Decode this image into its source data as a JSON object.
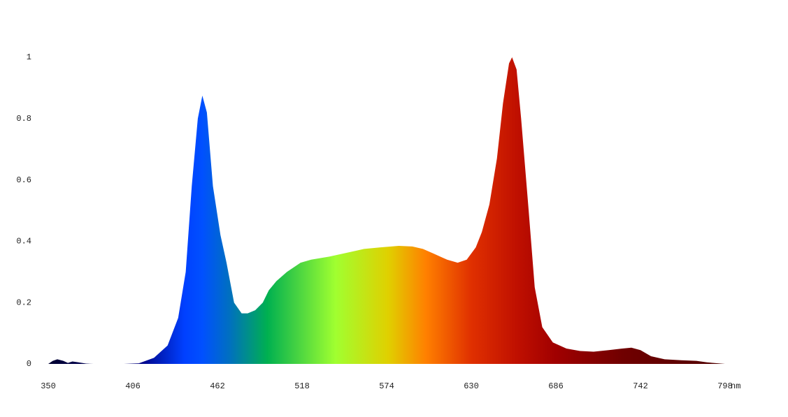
{
  "chart_data": {
    "type": "area",
    "x": [
      350,
      353,
      356,
      360,
      363,
      366,
      370,
      375,
      380,
      390,
      400,
      410,
      420,
      429,
      436,
      441,
      445,
      449,
      452,
      455,
      459,
      464,
      468,
      473,
      478,
      482,
      487,
      492,
      496,
      501,
      508,
      517,
      524,
      536,
      550,
      559,
      570,
      582,
      591,
      598,
      605,
      614,
      621,
      627,
      633,
      637,
      642,
      647,
      651,
      655,
      657,
      660,
      663,
      668,
      672,
      677,
      684,
      693,
      702,
      711,
      721,
      730,
      736,
      742,
      749,
      758,
      769,
      779,
      786,
      798
    ],
    "values": [
      0,
      0.01,
      0.015,
      0.01,
      0.003,
      0.008,
      0.005,
      0.001,
      0,
      0,
      0,
      0.002,
      0.02,
      0.06,
      0.15,
      0.3,
      0.58,
      0.8,
      0.875,
      0.82,
      0.58,
      0.42,
      0.33,
      0.2,
      0.165,
      0.165,
      0.175,
      0.2,
      0.24,
      0.27,
      0.3,
      0.33,
      0.34,
      0.35,
      0.365,
      0.375,
      0.38,
      0.385,
      0.383,
      0.375,
      0.36,
      0.34,
      0.33,
      0.34,
      0.38,
      0.43,
      0.52,
      0.67,
      0.85,
      0.98,
      1,
      0.96,
      0.8,
      0.5,
      0.25,
      0.12,
      0.07,
      0.05,
      0.042,
      0.04,
      0.045,
      0.05,
      0.053,
      0.045,
      0.025,
      0.015,
      0.012,
      0.01,
      0.005,
      0
    ],
    "gradient": [
      {
        "x": 350,
        "color": "#000030"
      },
      {
        "x": 410,
        "color": "#000080"
      },
      {
        "x": 440,
        "color": "#0040ff"
      },
      {
        "x": 452,
        "color": "#0050ff"
      },
      {
        "x": 470,
        "color": "#0070c0"
      },
      {
        "x": 495,
        "color": "#00b050"
      },
      {
        "x": 540,
        "color": "#a0ff30"
      },
      {
        "x": 575,
        "color": "#e0d000"
      },
      {
        "x": 600,
        "color": "#ff8000"
      },
      {
        "x": 630,
        "color": "#e03000"
      },
      {
        "x": 660,
        "color": "#c01000"
      },
      {
        "x": 686,
        "color": "#a00000"
      },
      {
        "x": 730,
        "color": "#700000"
      },
      {
        "x": 798,
        "color": "#500000"
      }
    ],
    "x_label": "nm",
    "xlim": [
      350,
      798
    ],
    "xticks": [
      350,
      406,
      462,
      518,
      574,
      630,
      686,
      742,
      798
    ],
    "ylim": [
      0,
      1
    ],
    "yticks": [
      0,
      0.2,
      0.4,
      0.6,
      0.8,
      1
    ]
  }
}
